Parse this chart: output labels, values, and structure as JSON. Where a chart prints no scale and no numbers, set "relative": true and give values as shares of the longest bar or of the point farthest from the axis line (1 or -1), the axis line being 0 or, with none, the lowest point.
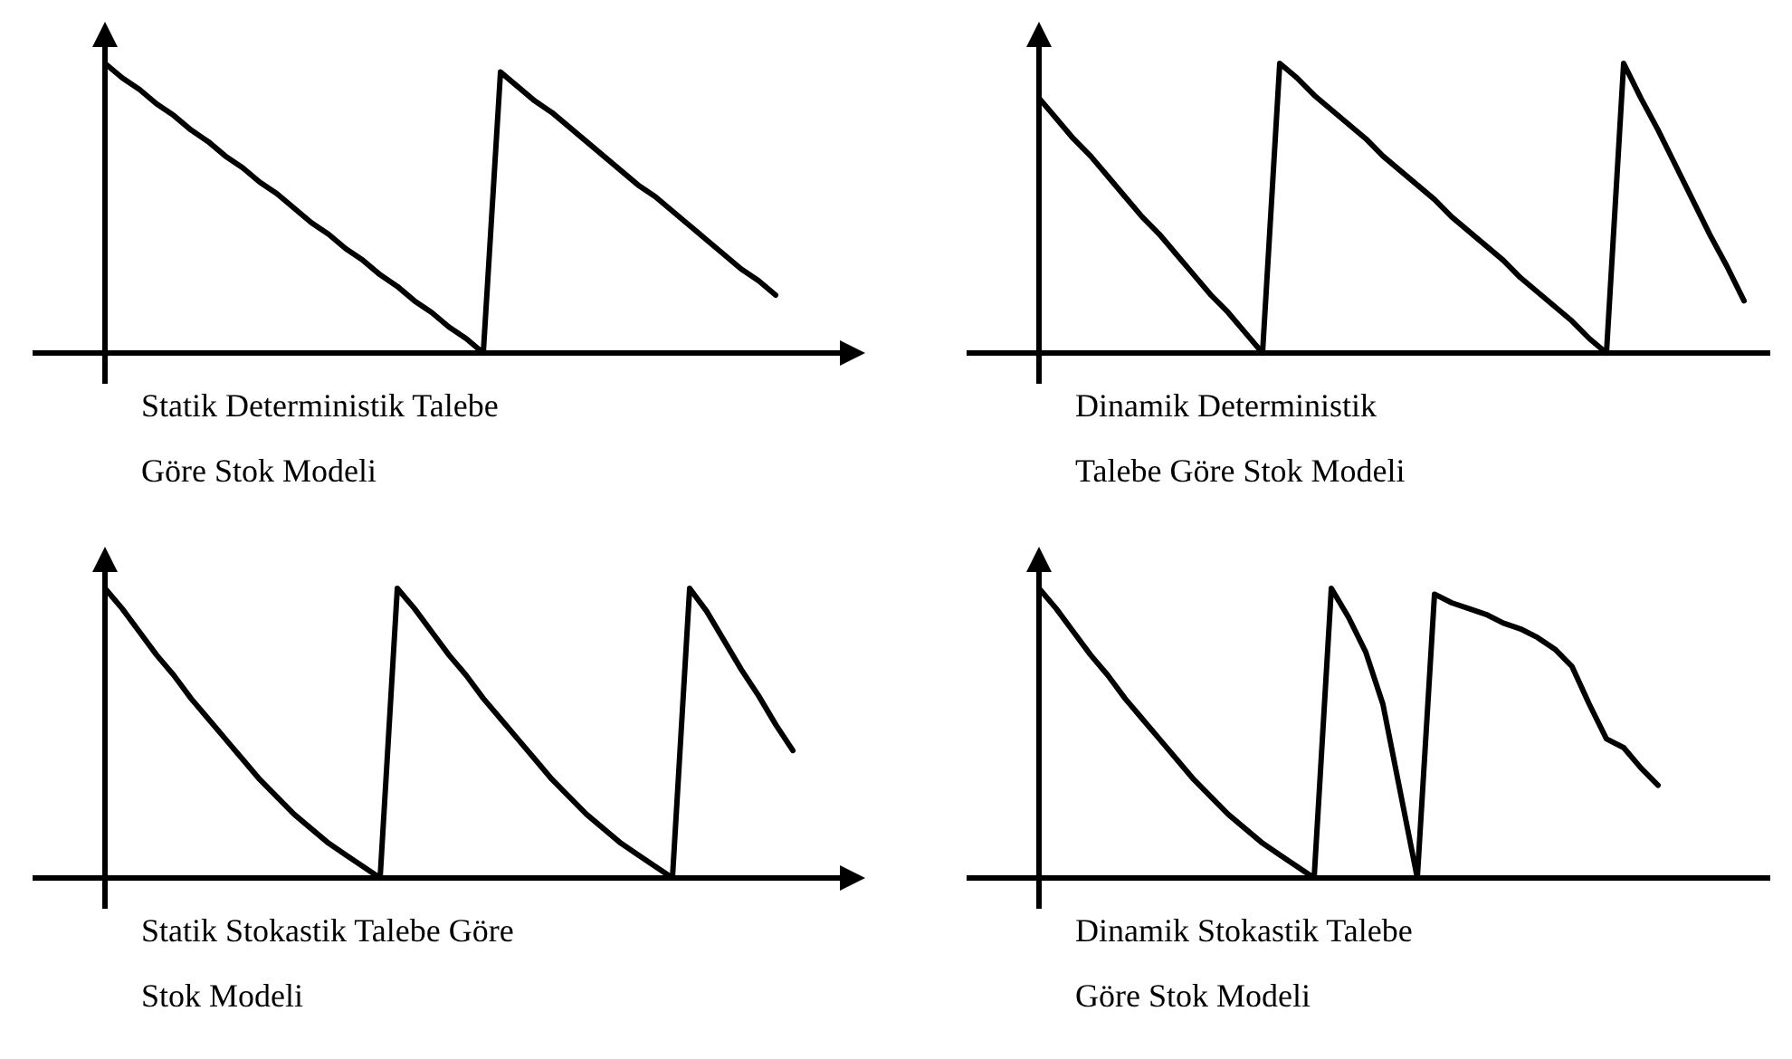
{
  "chart_data": [
    {
      "type": "line",
      "relative": true,
      "xlabel": "Statik Deterministik Talebe\nGöre Stok Modeli",
      "line_style": "solid",
      "categories": [
        null,
        null,
        null,
        null,
        null,
        null,
        null,
        null,
        null,
        null,
        null,
        null,
        null,
        null,
        null,
        null,
        null,
        null,
        null,
        null,
        null,
        null,
        null,
        null,
        null,
        null,
        null,
        null,
        null,
        null,
        null,
        null,
        null,
        null,
        null,
        null,
        null,
        null,
        null,
        null
      ],
      "series": [
        {
          "color": "#000000",
          "values": [
            1,
            0.95,
            0.91,
            0.86,
            0.82,
            0.77,
            0.73,
            0.68,
            0.64,
            0.59,
            0.55,
            0.5,
            0.45,
            0.41,
            0.36,
            0.32,
            0.27,
            0.23,
            0.18,
            0.14,
            0.09,
            0.05,
            0,
            0.97,
            0.92,
            0.87,
            0.83,
            0.78,
            0.73,
            0.68,
            0.63,
            0.58,
            0.54,
            0.49,
            0.44,
            0.39,
            0.34,
            0.29,
            0.25,
            0.2
          ]
        }
      ]
    },
    {
      "type": "line",
      "relative": true,
      "xlabel": "Dinamik Deterministik\nTalebe Göre Stok Modeli",
      "line_style": "solid",
      "categories": [
        null,
        null,
        null,
        null,
        null,
        null,
        null,
        null,
        null,
        null,
        null,
        null,
        null,
        null,
        null,
        null,
        null,
        null,
        null,
        null,
        null,
        null,
        null,
        null,
        null,
        null,
        null,
        null,
        null,
        null,
        null,
        null,
        null,
        null,
        null,
        null,
        null,
        null,
        null,
        null,
        null,
        null
      ],
      "series": [
        {
          "color": "#000000",
          "values": [
            0.88,
            0.81,
            0.74,
            0.68,
            0.61,
            0.54,
            0.47,
            0.41,
            0.34,
            0.27,
            0.2,
            0.14,
            0.07,
            0,
            1,
            0.95,
            0.89,
            0.84,
            0.79,
            0.74,
            0.68,
            0.63,
            0.58,
            0.53,
            0.47,
            0.42,
            0.37,
            0.32,
            0.26,
            0.21,
            0.16,
            0.11,
            0.05,
            0,
            1,
            0.88,
            0.77,
            0.65,
            0.53,
            0.41,
            0.3,
            0.18
          ]
        }
      ]
    },
    {
      "type": "line",
      "relative": true,
      "xlabel": "Statik Stokastik Talebe Göre\nStok Modeli",
      "line_style": "solid",
      "categories": [
        null,
        null,
        null,
        null,
        null,
        null,
        null,
        null,
        null,
        null,
        null,
        null,
        null,
        null,
        null,
        null,
        null,
        null,
        null,
        null,
        null,
        null,
        null,
        null,
        null,
        null,
        null,
        null,
        null,
        null,
        null,
        null,
        null,
        null,
        null,
        null,
        null,
        null,
        null,
        null,
        null
      ],
      "series": [
        {
          "color": "#000000",
          "values": [
            1,
            0.93,
            0.85,
            0.77,
            0.7,
            0.62,
            0.55,
            0.48,
            0.41,
            0.34,
            0.28,
            0.22,
            0.17,
            0.12,
            0.08,
            0.04,
            0,
            1,
            0.93,
            0.85,
            0.77,
            0.7,
            0.62,
            0.55,
            0.48,
            0.41,
            0.34,
            0.28,
            0.22,
            0.17,
            0.12,
            0.08,
            0.04,
            0,
            1,
            0.92,
            0.82,
            0.72,
            0.63,
            0.53,
            0.44
          ]
        }
      ]
    },
    {
      "type": "line",
      "relative": true,
      "xlabel": "Dinamik Stokastik Talebe\nGöre Stok Modeli",
      "line_style": "solid",
      "categories": [
        null,
        null,
        null,
        null,
        null,
        null,
        null,
        null,
        null,
        null,
        null,
        null,
        null,
        null,
        null,
        null,
        null,
        null,
        null,
        null,
        null,
        null,
        null,
        null,
        null,
        null,
        null,
        null,
        null,
        null,
        null,
        null,
        null,
        null,
        null,
        null,
        null
      ],
      "series": [
        {
          "color": "#000000",
          "values": [
            1,
            0.93,
            0.85,
            0.77,
            0.7,
            0.62,
            0.55,
            0.48,
            0.41,
            0.34,
            0.28,
            0.22,
            0.17,
            0.12,
            0.08,
            0.04,
            0,
            1,
            0.9,
            0.78,
            0.6,
            0.3,
            0,
            0.98,
            0.95,
            0.93,
            0.91,
            0.88,
            0.86,
            0.83,
            0.79,
            0.73,
            0.6,
            0.48,
            0.45,
            0.38,
            0.32
          ]
        }
      ]
    }
  ]
}
